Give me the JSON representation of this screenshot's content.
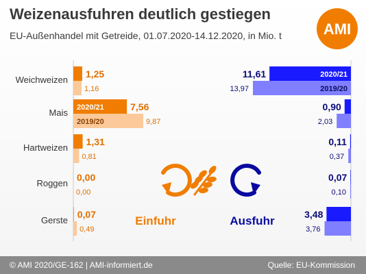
{
  "title": "Weizenausfuhren deutlich gestiegen",
  "subtitle": "EU-Außenhandel mit Getreide, 01.07.2020-14.12.2020, in Mio. t",
  "logo_text": "AMI",
  "footer": {
    "left": "© AMI 2020/GE-162 | AMI-informiert.de",
    "right": "Quelle: EU-Kommission"
  },
  "colors": {
    "import_2020": "#f07d00",
    "import_2019": "#fbc99a",
    "export_2020": "#1a1aff",
    "export_2019": "#7f7fff",
    "import_text": "#e07000",
    "export_text": "#0a0a7a",
    "logo": "#f07d00"
  },
  "icons": {
    "import": "circular-arrow-import-icon",
    "wheat": "wheat-ears-icon",
    "export": "circular-arrow-export-icon"
  },
  "chart_data": [
    {
      "type": "bar",
      "name": "Einfuhr",
      "categories": [
        "Weichweizen",
        "Mais",
        "Hartweizen",
        "Roggen",
        "Gerste"
      ],
      "series": [
        {
          "name": "2020/21",
          "values": [
            1.25,
            7.56,
            1.31,
            0.0,
            0.07
          ],
          "labels": [
            "1,25",
            "7,56",
            "1,31",
            "0,00",
            "0,07"
          ]
        },
        {
          "name": "2019/20",
          "values": [
            1.16,
            9.87,
            0.81,
            0.0,
            0.49
          ],
          "labels": [
            "1,16",
            "9,87",
            "0,81",
            "0,00",
            "0,49"
          ]
        }
      ],
      "annotation_row": 1
    },
    {
      "type": "bar",
      "name": "Ausfuhr",
      "categories": [
        "Weichweizen",
        "Mais",
        "Hartweizen",
        "Roggen",
        "Gerste"
      ],
      "series": [
        {
          "name": "2020/21",
          "values": [
            11.61,
            0.9,
            0.11,
            0.07,
            3.48
          ],
          "labels": [
            "11,61",
            "0,90",
            "0,11",
            "0,07",
            "3,48"
          ]
        },
        {
          "name": "2019/20",
          "values": [
            13.97,
            2.03,
            0.37,
            0.1,
            3.76
          ],
          "labels": [
            "13,97",
            "2,03",
            "0,37",
            "0,10",
            "3,76"
          ]
        }
      ],
      "annotation_row": 0
    }
  ]
}
